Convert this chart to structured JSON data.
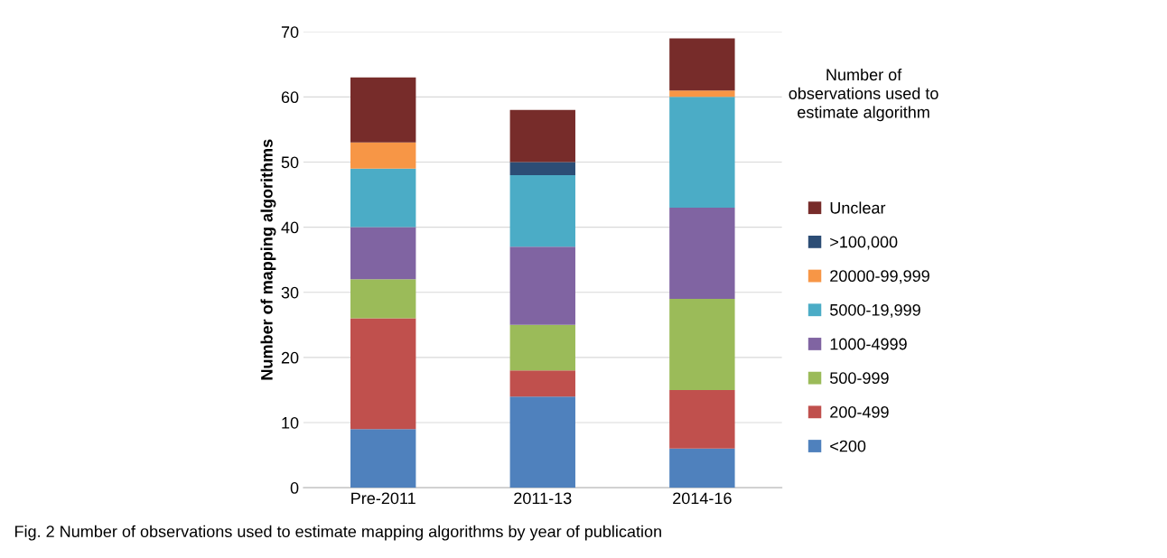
{
  "chart_data": {
    "type": "bar",
    "stacked": true,
    "categories": [
      "Pre-2011",
      "2011-13",
      "2014-16"
    ],
    "series": [
      {
        "name": "<200",
        "color": "#4f81bd",
        "values": [
          9,
          14,
          6
        ]
      },
      {
        "name": "200-499",
        "color": "#c0504d",
        "values": [
          17,
          4,
          9
        ]
      },
      {
        "name": "500-999",
        "color": "#9bbb59",
        "values": [
          6,
          7,
          14
        ]
      },
      {
        "name": "1000-4999",
        "color": "#8064a2",
        "values": [
          8,
          12,
          14
        ]
      },
      {
        "name": "5000-19,999",
        "color": "#4bacc6",
        "values": [
          9,
          11,
          17
        ]
      },
      {
        "name": "20000-99,999",
        "color": "#f79646",
        "values": [
          4,
          0,
          1
        ]
      },
      {
        "name": ">100,000",
        "color": "#2c4d75",
        "values": [
          0,
          2,
          0
        ]
      },
      {
        "name": "Unclear",
        "color": "#772c2a",
        "values": [
          10,
          8,
          8
        ]
      }
    ],
    "ylabel": "Number of mapping algorithms",
    "legend_title": "Number of\nobservations used to\nestimate algorithm",
    "ylim": [
      0,
      70
    ],
    "yticks": [
      0,
      10,
      20,
      30,
      40,
      50,
      60,
      70
    ],
    "grid": "y",
    "legend": "right",
    "annotations": [
      "Fig. 2 Number of observations used to estimate mapping algorithms by year of publication"
    ]
  }
}
